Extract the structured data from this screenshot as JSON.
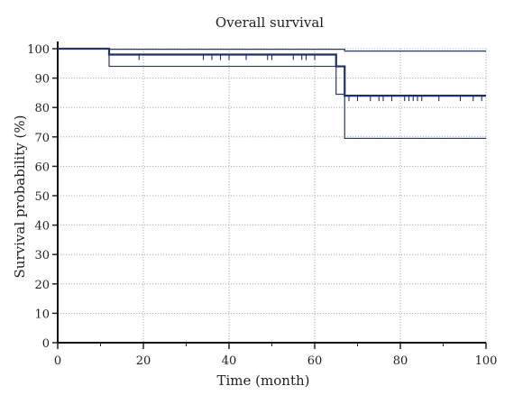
{
  "chart_data": {
    "type": "line",
    "title": "Overall survival",
    "xlabel": "Time (month)",
    "ylabel": "Survival probability (%)",
    "xlim": [
      0,
      100
    ],
    "ylim": [
      0,
      100
    ],
    "x_ticks": [
      0,
      20,
      40,
      60,
      80,
      100
    ],
    "y_ticks": [
      0,
      10,
      20,
      30,
      40,
      50,
      60,
      70,
      80,
      90,
      100
    ],
    "grid": true,
    "series": [
      {
        "role": "upper-ci",
        "color": "#2e3a5c",
        "width": 1.2,
        "steps": [
          [
            0,
            100
          ],
          [
            12,
            100
          ],
          [
            12,
            99.8
          ],
          [
            67,
            99.8
          ],
          [
            67,
            99.2
          ],
          [
            100,
            99.2
          ]
        ]
      },
      {
        "role": "estimate",
        "color": "#1f2f66",
        "width": 2.2,
        "steps": [
          [
            0,
            100
          ],
          [
            12,
            100
          ],
          [
            12,
            98.0
          ],
          [
            65,
            98.0
          ],
          [
            65,
            94.0
          ],
          [
            67,
            94.0
          ],
          [
            67,
            84.0
          ],
          [
            100,
            84.0
          ]
        ],
        "censor_x": [
          19,
          34,
          36,
          38,
          40,
          44,
          49,
          50,
          55,
          57,
          58,
          60,
          68,
          70,
          73,
          75,
          76,
          78,
          81,
          82,
          83,
          84,
          85,
          89,
          94,
          97,
          99
        ]
      },
      {
        "role": "lower-ci",
        "color": "#2e3a5c",
        "width": 1.2,
        "steps": [
          [
            0,
            100
          ],
          [
            12,
            100
          ],
          [
            12,
            94.0
          ],
          [
            65,
            94.0
          ],
          [
            65,
            84.5
          ],
          [
            67,
            84.5
          ],
          [
            67,
            69.5
          ],
          [
            100,
            69.5
          ]
        ]
      }
    ]
  }
}
